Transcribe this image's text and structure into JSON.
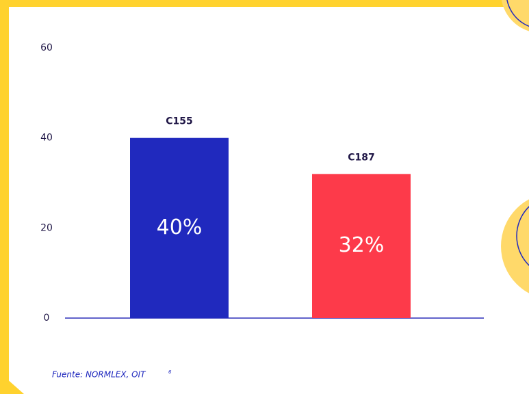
{
  "chart_data": {
    "type": "bar",
    "categories": [
      "C155",
      "C187"
    ],
    "values": [
      40,
      32
    ],
    "value_labels": [
      "40%",
      "32%"
    ],
    "colors": [
      "#2029be",
      "#fd3a4a"
    ],
    "ylim": [
      0,
      60
    ],
    "yticks": [
      0,
      20,
      40,
      60
    ],
    "grid": false,
    "source": "Fuente: NORMLEX, OIT",
    "source_note": "6"
  }
}
